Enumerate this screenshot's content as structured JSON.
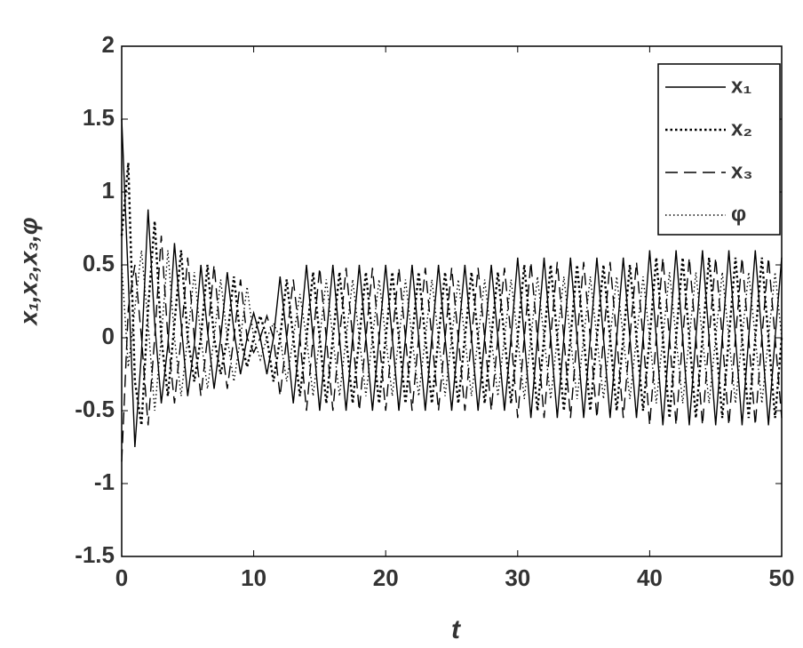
{
  "chart_data": {
    "type": "line",
    "x_label": "t",
    "y_label": "x₁,x₂,x₃,φ",
    "xlim": [
      0,
      50
    ],
    "ylim": [
      -1.5,
      2
    ],
    "xticks": [
      0,
      10,
      20,
      30,
      40,
      50
    ],
    "yticks": [
      -1.5,
      -1,
      -0.5,
      0,
      0.5,
      1,
      1.5,
      2
    ],
    "grid": false,
    "legend": "upper right",
    "x": [
      0,
      0.5,
      1,
      1.5,
      2,
      2.5,
      3,
      3.5,
      4,
      4.5,
      5,
      5.5,
      6,
      6.5,
      7,
      7.5,
      8,
      8.5,
      9,
      9.5,
      10,
      10.5,
      11,
      11.5,
      12,
      12.5,
      13,
      13.5,
      14,
      14.5,
      15,
      15.5,
      16,
      16.5,
      17,
      17.5,
      18,
      18.5,
      19,
      19.5,
      20,
      20.5,
      21,
      21.5,
      22,
      22.5,
      23,
      23.5,
      24,
      24.5,
      25,
      25.5,
      26,
      26.5,
      27,
      27.5,
      28,
      28.5,
      29,
      29.5,
      30,
      30.5,
      31,
      31.5,
      32,
      32.5,
      33,
      33.5,
      34,
      34.5,
      35,
      35.5,
      36,
      36.5,
      37,
      37.5,
      38,
      38.5,
      39,
      39.5,
      40,
      40.5,
      41,
      41.5,
      42,
      42.5,
      43,
      43.5,
      44,
      44.5,
      45,
      45.5,
      46,
      46.5,
      47,
      47.5,
      48,
      48.5,
      49,
      49.5,
      50
    ],
    "series": [
      {
        "name": "x₁",
        "color": "#000000",
        "dash": "solid",
        "values": [
          1.5,
          0.4,
          -0.75,
          -0.1,
          0.88,
          0.1,
          -0.45,
          -0.05,
          0.65,
          0.1,
          -0.4,
          -0.05,
          0.5,
          0.05,
          -0.35,
          0,
          0.45,
          0.05,
          -0.25,
          0,
          0.17,
          0,
          -0.25,
          0,
          0.42,
          0,
          -0.45,
          0,
          0.5,
          0,
          -0.5,
          0,
          0.5,
          0,
          -0.5,
          0,
          0.5,
          0,
          -0.5,
          0,
          0.5,
          0,
          -0.5,
          0,
          0.5,
          0,
          -0.5,
          0,
          0.5,
          0,
          -0.5,
          0,
          0.5,
          0,
          -0.5,
          0,
          0.5,
          0,
          -0.5,
          0,
          0.55,
          0,
          -0.55,
          0,
          0.55,
          0,
          -0.55,
          0,
          0.55,
          0,
          -0.55,
          0,
          0.55,
          0,
          -0.55,
          0,
          0.55,
          0,
          -0.55,
          0,
          0.6,
          0,
          -0.6,
          0,
          0.6,
          0,
          -0.6,
          0,
          0.6,
          0,
          -0.6,
          0,
          0.6,
          0,
          -0.6,
          0,
          0.6,
          0,
          -0.6,
          0,
          0.55
        ]
      },
      {
        "name": "x₂",
        "color": "#000000",
        "dash": "dotted-marker",
        "values": [
          0.7,
          1.2,
          -0.3,
          -0.6,
          0.2,
          0.8,
          0,
          -0.4,
          0.1,
          0.6,
          0,
          -0.3,
          0,
          0.5,
          0,
          -0.25,
          0,
          0.42,
          0,
          -0.2,
          0,
          0.15,
          0,
          -0.3,
          0,
          0.4,
          0,
          -0.4,
          0,
          0.45,
          0,
          -0.45,
          0,
          0.45,
          0,
          -0.45,
          0,
          0.45,
          0,
          -0.45,
          0,
          0.45,
          0,
          -0.45,
          0,
          0.45,
          0,
          -0.45,
          0,
          0.45,
          0,
          -0.45,
          0,
          0.45,
          0,
          -0.45,
          0,
          0.45,
          0,
          -0.45,
          0,
          0.5,
          0,
          -0.5,
          0,
          0.5,
          0,
          -0.5,
          0,
          0.5,
          0,
          -0.5,
          0,
          0.5,
          0,
          -0.5,
          0,
          0.5,
          0,
          -0.5,
          0,
          0.55,
          0,
          -0.55,
          0,
          0.55,
          0,
          -0.55,
          0,
          0.55,
          0,
          -0.55,
          0,
          0.55,
          0,
          -0.55,
          0,
          0.55,
          0,
          -0.55,
          0
        ]
      },
      {
        "name": "x₃",
        "color": "#000000",
        "dash": "dashed",
        "values": [
          -0.85,
          0.2,
          0.5,
          0,
          -0.6,
          0,
          0.7,
          0,
          -0.45,
          0,
          0.55,
          0,
          -0.4,
          0,
          0.5,
          0,
          -0.35,
          0,
          0.4,
          0,
          -0.1,
          0,
          0.15,
          0,
          -0.4,
          0,
          0.4,
          0,
          -0.5,
          0,
          0.48,
          0,
          -0.5,
          0,
          0.48,
          0,
          -0.5,
          0,
          0.48,
          0,
          -0.5,
          0,
          0.48,
          0,
          -0.5,
          0,
          0.48,
          0,
          -0.5,
          0,
          0.48,
          0,
          -0.5,
          0,
          0.48,
          0,
          -0.5,
          0,
          0.48,
          0,
          -0.55,
          0,
          0.52,
          0,
          -0.55,
          0,
          0.52,
          0,
          -0.55,
          0,
          0.52,
          0,
          -0.55,
          0,
          0.52,
          0,
          -0.55,
          0,
          0.52,
          0,
          -0.6,
          0,
          0.55,
          0,
          -0.6,
          0,
          0.55,
          0,
          -0.6,
          0,
          0.55,
          0,
          -0.6,
          0,
          0.55,
          0,
          -0.6,
          0,
          0.55,
          0,
          -0.55
        ]
      },
      {
        "name": "φ",
        "color": "#000000",
        "dash": "dotted",
        "values": [
          0.5,
          -0.2,
          0.2,
          0.6,
          0.1,
          -0.5,
          0,
          0.6,
          0,
          -0.4,
          0,
          0.45,
          0,
          -0.35,
          0,
          0.4,
          0,
          -0.3,
          0,
          0.35,
          0,
          -0.15,
          0,
          0.1,
          0,
          -0.3,
          0,
          0.3,
          0,
          -0.4,
          0,
          0.4,
          0,
          -0.4,
          0,
          0.4,
          0,
          -0.4,
          0,
          0.4,
          0,
          -0.4,
          0,
          0.4,
          0,
          -0.4,
          0,
          0.4,
          0,
          -0.4,
          0,
          0.4,
          0,
          -0.4,
          0,
          0.4,
          0,
          -0.4,
          0,
          0.4,
          0,
          -0.42,
          0,
          0.42,
          0,
          -0.42,
          0,
          0.42,
          0,
          -0.42,
          0,
          0.42,
          0,
          -0.42,
          0,
          0.42,
          0,
          -0.42,
          0,
          0.42,
          0,
          -0.45,
          0,
          0.45,
          0,
          -0.45,
          0,
          0.45,
          0,
          -0.45,
          0,
          0.45,
          0,
          -0.45,
          0,
          0.45,
          0,
          -0.45,
          0,
          0.45,
          0
        ]
      }
    ]
  }
}
